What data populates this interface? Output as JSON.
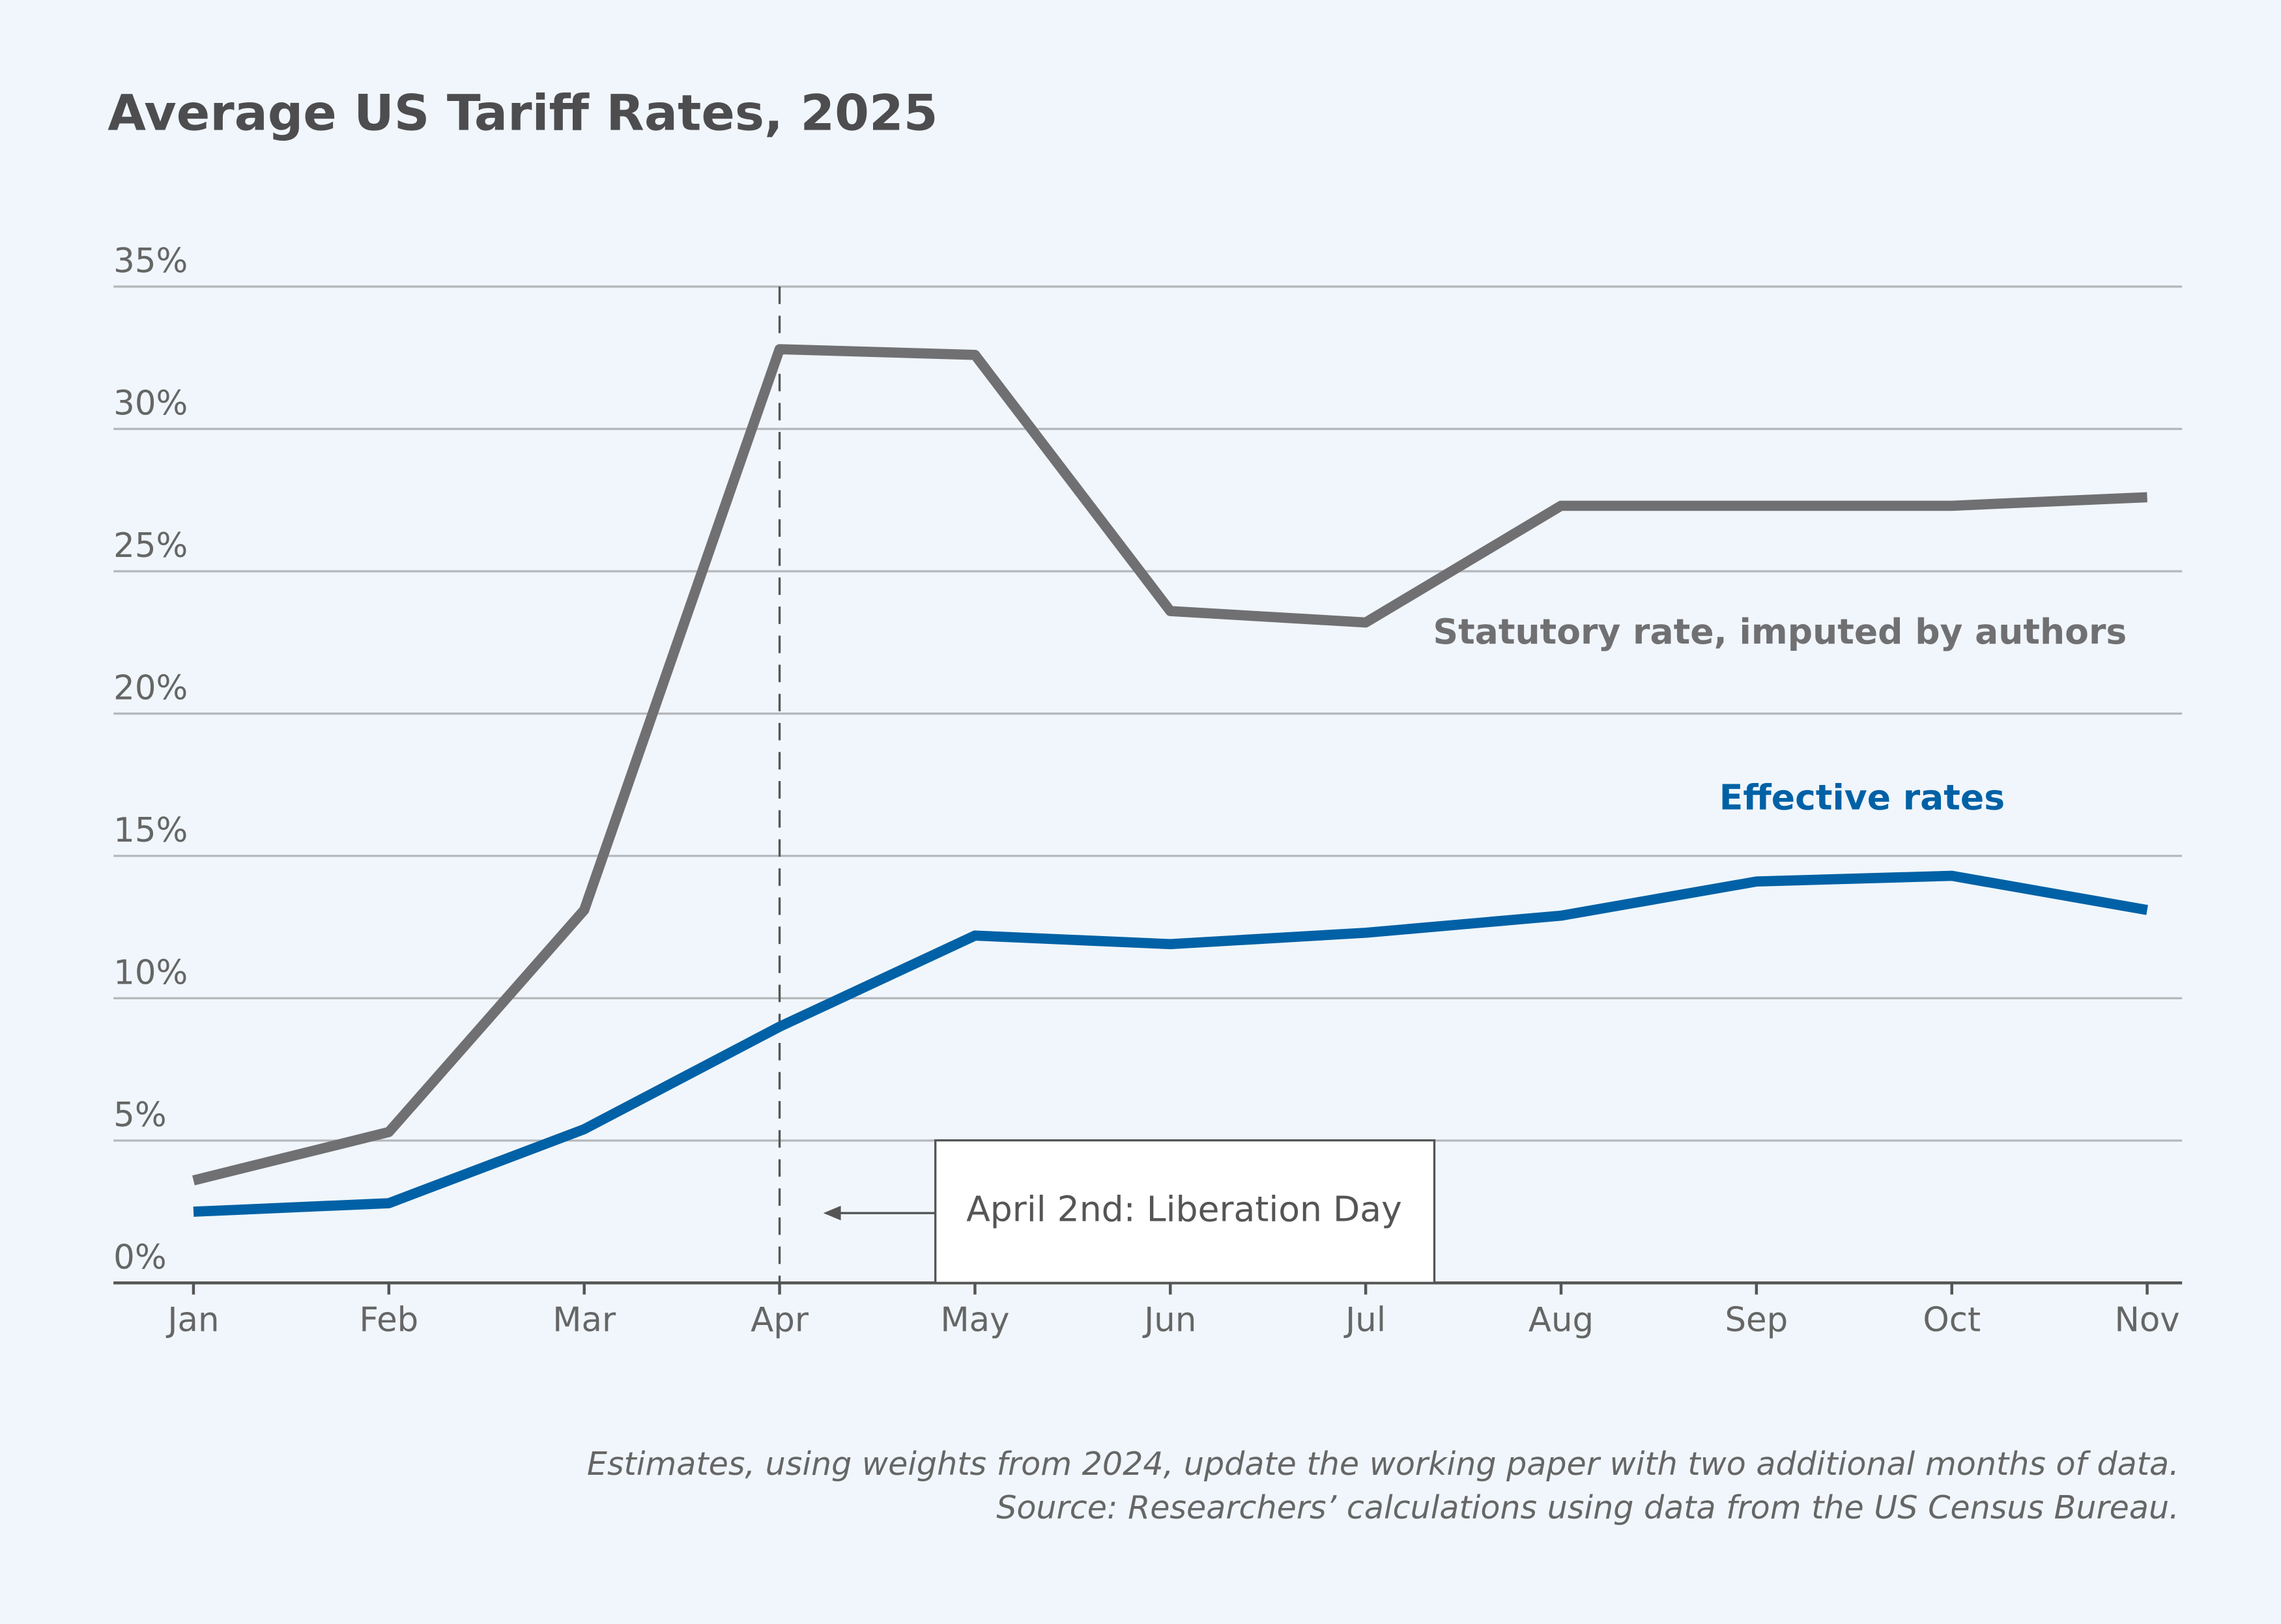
{
  "chart_data": {
    "type": "line",
    "title": "Average US Tariff Rates, 2025",
    "categories": [
      "Jan",
      "Feb",
      "Mar",
      "Apr",
      "May",
      "Jun",
      "Jul",
      "Aug",
      "Sep",
      "Oct",
      "Nov"
    ],
    "series": [
      {
        "name": "Statutory rate, imputed by authors",
        "color": "#707073",
        "values": [
          3.6,
          5.3,
          13.1,
          32.8,
          32.6,
          23.6,
          23.2,
          27.3,
          27.3,
          27.3,
          27.6
        ]
      },
      {
        "name": "Effective rates",
        "color": "#0061a6",
        "values": [
          2.5,
          2.8,
          5.4,
          9.0,
          12.2,
          11.9,
          12.3,
          12.9,
          14.1,
          14.3,
          13.1
        ]
      }
    ],
    "ylim": [
      0,
      35
    ],
    "yticks": [
      {
        "value": 0,
        "label": "0%"
      },
      {
        "value": 5,
        "label": "5%"
      },
      {
        "value": 10,
        "label": "10%"
      },
      {
        "value": 15,
        "label": "15%"
      },
      {
        "value": 20,
        "label": "20%"
      },
      {
        "value": 25,
        "label": "25%"
      },
      {
        "value": 30,
        "label": "30%"
      },
      {
        "value": 35,
        "label": "35%"
      }
    ],
    "grid": true,
    "annotation": "April 2nd: Liberation Day",
    "notes": [
      "Estimates, using weights from 2024, update the working paper with two additional months of data.",
      "Source: Researchers’ calculations using data from the US Census Bureau."
    ]
  }
}
